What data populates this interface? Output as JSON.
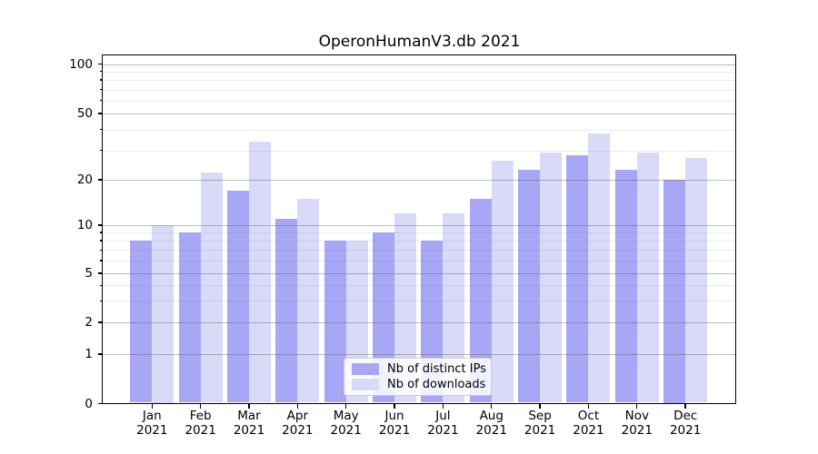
{
  "figure": {
    "title": "OperonHumanV3.db 2021"
  },
  "chart_data": {
    "type": "bar",
    "title": "OperonHumanV3.db 2021",
    "xlabel": "",
    "ylabel": "",
    "yscale": "symlog",
    "ylim": [
      0,
      110
    ],
    "grid": true,
    "legend_position": "lower center inside",
    "categories": [
      "Jan",
      "Feb",
      "Mar",
      "Apr",
      "May",
      "Jun",
      "Jul",
      "Aug",
      "Sep",
      "Oct",
      "Nov",
      "Dec"
    ],
    "category_year": "2021",
    "y_major_ticks": [
      0,
      1,
      2,
      5,
      10,
      20,
      50,
      100
    ],
    "y_minor_ticks": [
      3,
      4,
      6,
      7,
      8,
      9,
      30,
      40,
      60,
      70,
      80,
      90
    ],
    "series": [
      {
        "name": "Nb of distinct IPs",
        "color": "#a7a7f5",
        "values": [
          8,
          9,
          17,
          11,
          8,
          9,
          8,
          15,
          23,
          28,
          23,
          20
        ]
      },
      {
        "name": "Nb of downloads",
        "color": "#d9d9f8",
        "values": [
          10,
          22,
          34,
          15,
          8,
          12,
          12,
          26,
          29,
          38,
          29,
          27
        ]
      }
    ]
  },
  "colors": {
    "background": "#ffffff",
    "axis": "#000000",
    "grid_major": "#bdbdbd",
    "grid_minor": "#ececec",
    "series_ips": "#a7a7f5",
    "series_downloads": "#d9d9f8"
  }
}
